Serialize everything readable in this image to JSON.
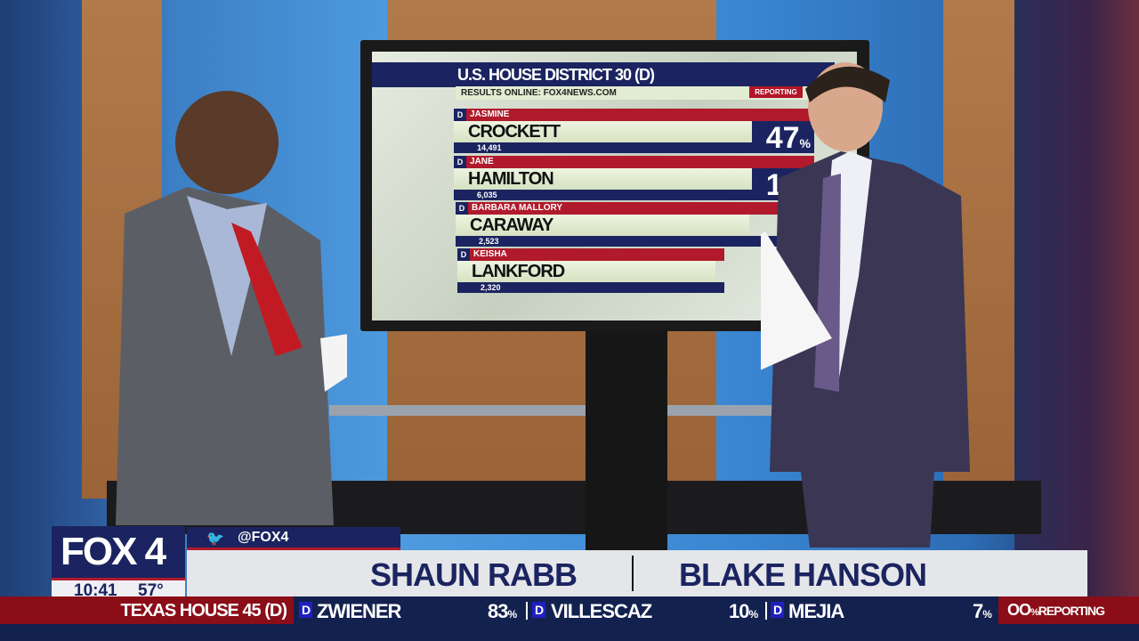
{
  "screen_graphic": {
    "title": "U.S. HOUSE DISTRICT 30 (D)",
    "results_online": "RESULTS ONLINE: FOX4NEWS.COM",
    "reporting_label": "REPORTING",
    "candidates": [
      {
        "party": "D",
        "first": "JASMINE",
        "last": "CROCKETT",
        "votes": "14,491",
        "pct": "47",
        "pct_sign": "%"
      },
      {
        "party": "D",
        "first": "JANE",
        "last": "HAMILTON",
        "votes": "6,035",
        "pct": "19",
        "pct_sign": "%"
      },
      {
        "party": "D",
        "first": "BARBARA MALLORY",
        "last": "CARAWAY",
        "votes": "2,523"
      },
      {
        "party": "D",
        "first": "KEISHA",
        "last": "LANKFORD",
        "votes": "2,320"
      }
    ]
  },
  "lower_third": {
    "logo": "FOX 4",
    "time": "10:41",
    "temperature": "57°",
    "social_handle": "@FOX4",
    "names": [
      "SHAUN RABB",
      "BLAKE HANSON"
    ]
  },
  "ticker": {
    "race": "TEXAS HOUSE 45 (D)",
    "entries": [
      {
        "party": "D",
        "name": "ZWIENER",
        "pct": "83",
        "pct_sign": "%"
      },
      {
        "party": "D",
        "name": "VILLESCAZ",
        "pct": "10",
        "pct_sign": "%"
      },
      {
        "party": "D",
        "name": "MEJIA",
        "pct": "7",
        "pct_sign": "%"
      }
    ],
    "reporting_value": "OO",
    "reporting_sign": "%",
    "reporting_label": "REPORTING"
  },
  "colors": {
    "navy": "#1b2460",
    "red": "#b01a2c",
    "ticker_navy": "#13214f",
    "ticker_red": "#8a0d18"
  }
}
